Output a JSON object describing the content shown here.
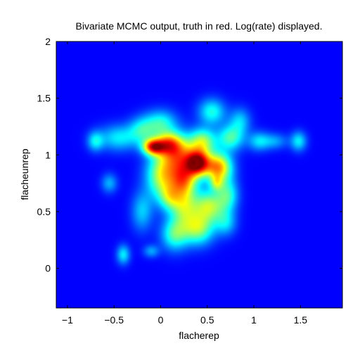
{
  "chart_data": {
    "type": "heatmap",
    "title": "Bivariate MCMC output, truth in red. Log(rate) displayed.",
    "xlabel": "flacherep",
    "ylabel": "flacheunrep",
    "xlim": [
      -1.12,
      1.95
    ],
    "ylim": [
      -0.35,
      2.0
    ],
    "xticks": [
      -1,
      -0.5,
      0,
      0.5,
      1,
      1.5
    ],
    "yticks": [
      0,
      0.5,
      1,
      1.5,
      2
    ],
    "xtick_labels": [
      "−1",
      "−0.5",
      "0",
      "0.5",
      "1",
      "1.5"
    ],
    "ytick_labels": [
      "0",
      "0.5",
      "1",
      "1.5",
      "2"
    ],
    "colormap": "jet",
    "background_color": "#00008f",
    "grid": false,
    "legend": "none",
    "density_components": [
      {
        "x": 0.4,
        "y": 0.93,
        "w": 1.0,
        "sx": 0.09,
        "sy": 0.08
      },
      {
        "x": 0.62,
        "y": 0.89,
        "w": 0.75,
        "sx": 0.1,
        "sy": 0.09
      },
      {
        "x": 0.25,
        "y": 0.78,
        "w": 0.6,
        "sx": 0.1,
        "sy": 0.1
      },
      {
        "x": -0.08,
        "y": 1.07,
        "w": 0.8,
        "sx": 0.08,
        "sy": 0.05
      },
      {
        "x": 0.08,
        "y": 1.1,
        "w": 0.55,
        "sx": 0.1,
        "sy": 0.07
      },
      {
        "x": 0.2,
        "y": 1.0,
        "w": 0.6,
        "sx": 0.12,
        "sy": 0.12
      },
      {
        "x": 0.02,
        "y": 0.82,
        "w": 0.58,
        "sx": 0.12,
        "sy": 0.15
      },
      {
        "x": 0.45,
        "y": 1.12,
        "w": 0.5,
        "sx": 0.1,
        "sy": 0.08
      },
      {
        "x": 0.52,
        "y": 0.55,
        "w": 0.52,
        "sx": 0.12,
        "sy": 0.1
      },
      {
        "x": 0.25,
        "y": 0.55,
        "w": 0.45,
        "sx": 0.1,
        "sy": 0.12
      },
      {
        "x": 0.4,
        "y": 0.35,
        "w": 0.5,
        "sx": 0.12,
        "sy": 0.1
      },
      {
        "x": 0.15,
        "y": 0.3,
        "w": 0.4,
        "sx": 0.1,
        "sy": 0.1
      },
      {
        "x": 0.72,
        "y": 0.65,
        "w": 0.35,
        "sx": 0.08,
        "sy": 0.1
      },
      {
        "x": 0.75,
        "y": 1.15,
        "w": 0.4,
        "sx": 0.1,
        "sy": 0.08
      },
      {
        "x": 0.55,
        "y": 1.38,
        "w": 0.35,
        "sx": 0.1,
        "sy": 0.08
      },
      {
        "x": 0.0,
        "y": 1.28,
        "w": 0.35,
        "sx": 0.12,
        "sy": 0.08
      },
      {
        "x": -0.2,
        "y": 1.22,
        "w": 0.3,
        "sx": 0.1,
        "sy": 0.08
      },
      {
        "x": -0.45,
        "y": 1.15,
        "w": 0.3,
        "sx": 0.15,
        "sy": 0.08
      },
      {
        "x": -0.7,
        "y": 1.12,
        "w": 0.28,
        "sx": 0.06,
        "sy": 0.06
      },
      {
        "x": -0.55,
        "y": 0.75,
        "w": 0.22,
        "sx": 0.06,
        "sy": 0.06
      },
      {
        "x": 1.05,
        "y": 1.12,
        "w": 0.25,
        "sx": 0.08,
        "sy": 0.06
      },
      {
        "x": 1.48,
        "y": 1.12,
        "w": 0.3,
        "sx": 0.06,
        "sy": 0.06
      },
      {
        "x": 1.22,
        "y": 1.12,
        "w": 0.2,
        "sx": 0.1,
        "sy": 0.05
      },
      {
        "x": 0.85,
        "y": 1.3,
        "w": 0.25,
        "sx": 0.08,
        "sy": 0.08
      },
      {
        "x": 0.7,
        "y": 0.4,
        "w": 0.25,
        "sx": 0.08,
        "sy": 0.08
      },
      {
        "x": -0.2,
        "y": 0.5,
        "w": 0.25,
        "sx": 0.08,
        "sy": 0.12
      },
      {
        "x": -0.4,
        "y": 0.12,
        "w": 0.3,
        "sx": 0.05,
        "sy": 0.06
      },
      {
        "x": -0.1,
        "y": 0.15,
        "w": 0.2,
        "sx": 0.06,
        "sy": 0.04
      },
      {
        "x": 0.6,
        "y": 0.75,
        "w": 0.3,
        "sx": 0.05,
        "sy": 0.05
      },
      {
        "x": 0.1,
        "y": 0.62,
        "w": 0.3,
        "sx": 0.08,
        "sy": 0.08
      }
    ],
    "truth_marker": {
      "x": 0.35,
      "y": 0.93,
      "color": "#800000"
    }
  }
}
